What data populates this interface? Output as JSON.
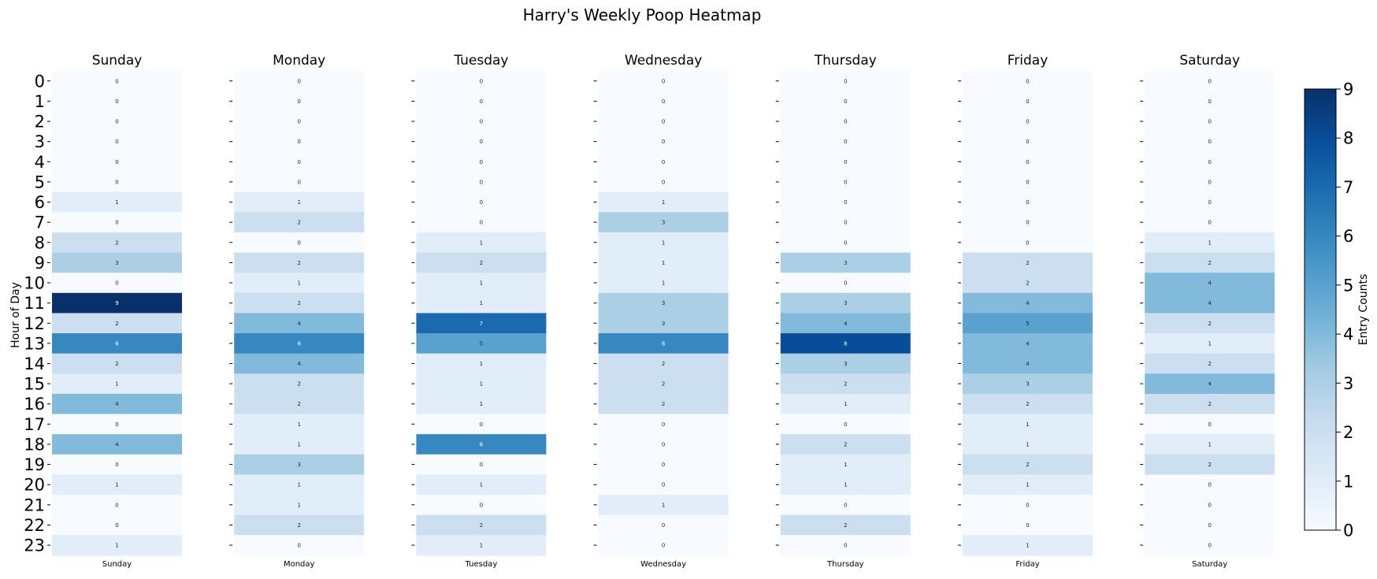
{
  "chart_data": {
    "type": "heatmap",
    "title": "Harry's Weekly Poop Heatmap",
    "days": [
      "Sunday",
      "Monday",
      "Tuesday",
      "Wednesday",
      "Thursday",
      "Friday",
      "Saturday"
    ],
    "hours": [
      "0",
      "1",
      "2",
      "3",
      "4",
      "5",
      "6",
      "7",
      "8",
      "9",
      "10",
      "11",
      "12",
      "13",
      "14",
      "15",
      "16",
      "17",
      "18",
      "19",
      "20",
      "21",
      "22",
      "23"
    ],
    "ylabel": "Hour of Day",
    "colorbar_label": "Entry Counts",
    "colorbar_ticks": [
      "0",
      "1",
      "2",
      "3",
      "4",
      "5",
      "6",
      "7",
      "8",
      "9"
    ],
    "vmin": 0,
    "vmax": 9,
    "colormap": "Blues",
    "values": [
      [
        0,
        0,
        0,
        0,
        0,
        0,
        1,
        0,
        2,
        3,
        0,
        9,
        2,
        6,
        2,
        1,
        4,
        0,
        4,
        0,
        1,
        0,
        0,
        1
      ],
      [
        0,
        0,
        0,
        0,
        0,
        0,
        1,
        2,
        0,
        2,
        1,
        2,
        4,
        6,
        4,
        2,
        2,
        1,
        1,
        3,
        1,
        1,
        2,
        0
      ],
      [
        0,
        0,
        0,
        0,
        0,
        0,
        0,
        0,
        1,
        2,
        1,
        1,
        7,
        5,
        1,
        1,
        1,
        0,
        6,
        0,
        1,
        0,
        2,
        1
      ],
      [
        0,
        0,
        0,
        0,
        0,
        0,
        1,
        3,
        1,
        1,
        1,
        3,
        3,
        6,
        2,
        2,
        2,
        0,
        0,
        0,
        0,
        1,
        0,
        0
      ],
      [
        0,
        0,
        0,
        0,
        0,
        0,
        0,
        0,
        0,
        3,
        0,
        3,
        4,
        8,
        3,
        2,
        1,
        0,
        2,
        1,
        1,
        0,
        2,
        0
      ],
      [
        0,
        0,
        0,
        0,
        0,
        0,
        0,
        0,
        0,
        2,
        2,
        4,
        5,
        4,
        4,
        3,
        2,
        1,
        1,
        2,
        1,
        0,
        0,
        1
      ],
      [
        0,
        0,
        0,
        0,
        0,
        0,
        0,
        0,
        1,
        2,
        4,
        4,
        2,
        1,
        2,
        4,
        2,
        0,
        1,
        2,
        0,
        0,
        0,
        0
      ]
    ]
  }
}
